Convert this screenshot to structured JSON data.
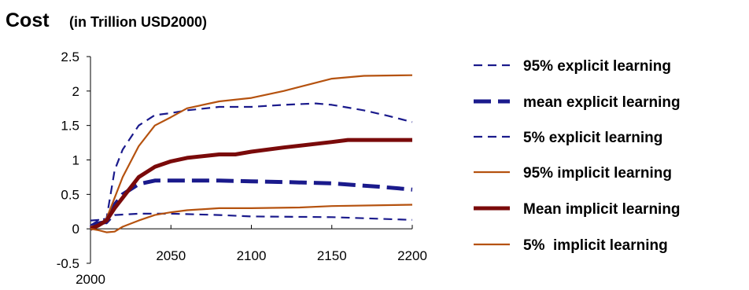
{
  "chart_data": {
    "type": "line",
    "title": "Cost",
    "subtitle": "(in Trillion USD2000)",
    "xlabel": "",
    "ylabel": "",
    "xlim": [
      2000,
      2200
    ],
    "ylim": [
      -0.5,
      2.5
    ],
    "x_ticks": [
      "2050",
      "2100",
      "2150",
      "2200"
    ],
    "x_origin_label": "2000",
    "y_ticks": [
      "-0.5",
      "0",
      "0.5",
      "1",
      "1.5",
      "2",
      "2.5"
    ],
    "y_tick_values": [
      -0.5,
      0,
      0.5,
      1,
      1.5,
      2,
      2.5
    ],
    "x_tick_values": [
      2050,
      2100,
      2150,
      2200
    ],
    "grid": false,
    "legend_position": "right",
    "series": [
      {
        "name": "95% explicit learning",
        "color": "#1a1a8c",
        "style": "dashed",
        "weight": "thin",
        "points": [
          [
            2000,
            0.05
          ],
          [
            2005,
            0.12
          ],
          [
            2010,
            0.15
          ],
          [
            2015,
            0.85
          ],
          [
            2020,
            1.15
          ],
          [
            2030,
            1.5
          ],
          [
            2040,
            1.65
          ],
          [
            2050,
            1.68
          ],
          [
            2060,
            1.72
          ],
          [
            2080,
            1.77
          ],
          [
            2100,
            1.77
          ],
          [
            2120,
            1.8
          ],
          [
            2140,
            1.82
          ],
          [
            2150,
            1.8
          ],
          [
            2170,
            1.72
          ],
          [
            2185,
            1.64
          ],
          [
            2200,
            1.55
          ]
        ]
      },
      {
        "name": "mean explicit learning",
        "color": "#1a1a8c",
        "style": "dashed",
        "weight": "thick",
        "points": [
          [
            2000,
            0.02
          ],
          [
            2005,
            0.08
          ],
          [
            2010,
            0.1
          ],
          [
            2015,
            0.35
          ],
          [
            2020,
            0.5
          ],
          [
            2030,
            0.65
          ],
          [
            2040,
            0.7
          ],
          [
            2060,
            0.7
          ],
          [
            2080,
            0.7
          ],
          [
            2100,
            0.69
          ],
          [
            2120,
            0.68
          ],
          [
            2150,
            0.66
          ],
          [
            2180,
            0.61
          ],
          [
            2200,
            0.57
          ]
        ]
      },
      {
        "name": "5% explicit learning",
        "color": "#1a1a8c",
        "style": "dashed",
        "weight": "thin",
        "points": [
          [
            2000,
            0.12
          ],
          [
            2005,
            0.13
          ],
          [
            2010,
            0.08
          ],
          [
            2015,
            0.2
          ],
          [
            2030,
            0.22
          ],
          [
            2050,
            0.22
          ],
          [
            2080,
            0.2
          ],
          [
            2100,
            0.18
          ],
          [
            2150,
            0.17
          ],
          [
            2200,
            0.13
          ]
        ]
      },
      {
        "name": "95% implicit learning",
        "color": "#b5520f",
        "style": "solid",
        "weight": "thin",
        "points": [
          [
            2000,
            0.03
          ],
          [
            2005,
            0.05
          ],
          [
            2010,
            0.15
          ],
          [
            2015,
            0.45
          ],
          [
            2020,
            0.75
          ],
          [
            2030,
            1.2
          ],
          [
            2040,
            1.5
          ],
          [
            2050,
            1.62
          ],
          [
            2060,
            1.75
          ],
          [
            2080,
            1.85
          ],
          [
            2100,
            1.9
          ],
          [
            2120,
            2.0
          ],
          [
            2140,
            2.12
          ],
          [
            2150,
            2.18
          ],
          [
            2170,
            2.22
          ],
          [
            2200,
            2.23
          ]
        ]
      },
      {
        "name": "Mean implicit learning",
        "color": "#7a0a0a",
        "style": "solid",
        "weight": "thick",
        "points": [
          [
            2000,
            0.0
          ],
          [
            2005,
            0.05
          ],
          [
            2010,
            0.12
          ],
          [
            2015,
            0.3
          ],
          [
            2020,
            0.45
          ],
          [
            2030,
            0.75
          ],
          [
            2040,
            0.9
          ],
          [
            2050,
            0.98
          ],
          [
            2060,
            1.03
          ],
          [
            2080,
            1.08
          ],
          [
            2090,
            1.08
          ],
          [
            2100,
            1.12
          ],
          [
            2120,
            1.18
          ],
          [
            2150,
            1.26
          ],
          [
            2160,
            1.29
          ],
          [
            2200,
            1.29
          ]
        ]
      },
      {
        "name": "5%  implicit learning",
        "color": "#b5520f",
        "style": "solid",
        "weight": "thin",
        "points": [
          [
            2000,
            0.0
          ],
          [
            2005,
            -0.02
          ],
          [
            2010,
            -0.05
          ],
          [
            2015,
            -0.04
          ],
          [
            2020,
            0.03
          ],
          [
            2030,
            0.12
          ],
          [
            2040,
            0.2
          ],
          [
            2050,
            0.24
          ],
          [
            2060,
            0.27
          ],
          [
            2080,
            0.3
          ],
          [
            2100,
            0.3
          ],
          [
            2130,
            0.31
          ],
          [
            2150,
            0.33
          ],
          [
            2200,
            0.35
          ]
        ]
      }
    ]
  }
}
